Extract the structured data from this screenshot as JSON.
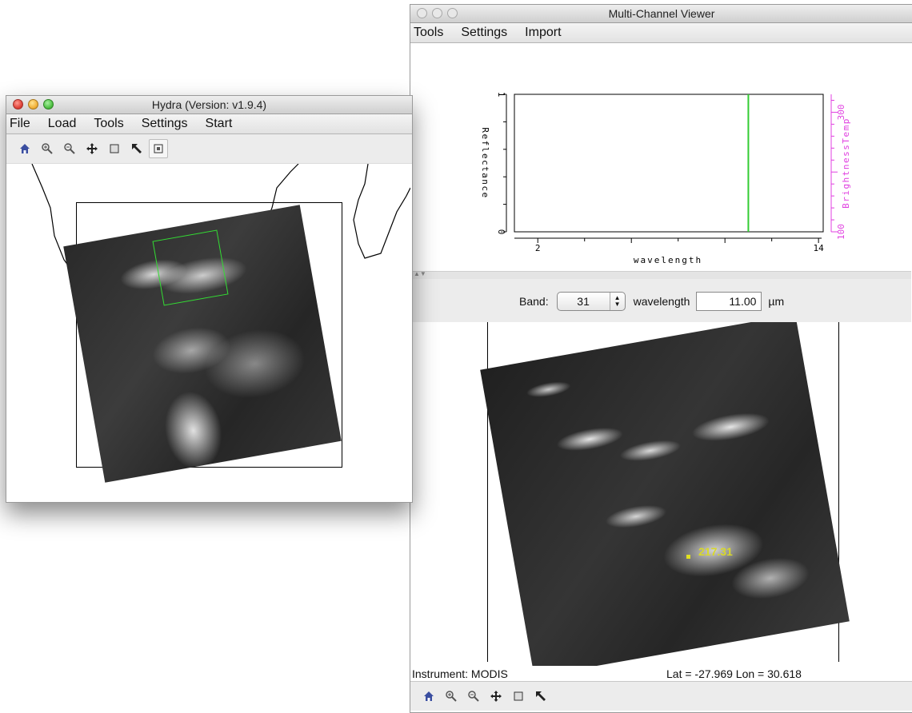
{
  "hydra_window": {
    "title": "Hydra  (Version: v1.9.4)",
    "menu": [
      "File",
      "Load",
      "Tools",
      "Settings",
      "Start"
    ],
    "toolbar_icons": [
      "home-icon",
      "zoom-in-icon",
      "zoom-out-icon",
      "pan-icon",
      "rectangle-select-icon",
      "pointer-icon",
      "region-select-icon"
    ]
  },
  "mcv_window": {
    "title": "Multi-Channel Viewer",
    "menu": [
      "Tools",
      "Settings",
      "Import"
    ],
    "band": {
      "label": "Band:",
      "value": "31",
      "wavelength_label": "wavelength",
      "wavelength_value": "11.00",
      "unit": "µm"
    },
    "probe_value": "217.31",
    "status": {
      "instrument": "Instrument: MODIS",
      "latlon": "Lat = -27.969  Lon = 30.618"
    },
    "toolbar_icons": [
      "home-icon",
      "zoom-in-icon",
      "zoom-out-icon",
      "pan-icon",
      "rectangle-select-icon",
      "pointer-icon"
    ]
  },
  "chart_data": {
    "type": "line",
    "xlabel": "wavelength",
    "ylabel": "Reflectance",
    "y2label": "BrightnessTemp",
    "x_ticks": [
      "2",
      "14"
    ],
    "y_ticks": [
      "0",
      "1"
    ],
    "y2_ticks": [
      "100",
      "300"
    ],
    "xlim": [
      1,
      14.2
    ],
    "ylim": [
      0,
      1
    ],
    "y2lim": [
      100,
      330
    ],
    "series": [],
    "marker_wavelength": 11.0,
    "colors": {
      "marker": "#33cc33",
      "y2_axis": "#e040e0"
    }
  }
}
